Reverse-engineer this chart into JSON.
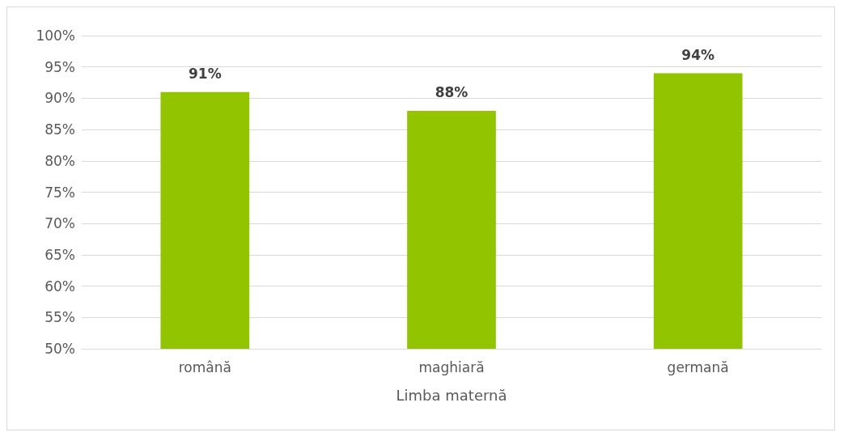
{
  "chart_data": {
    "type": "bar",
    "xlabel": "Limba maternă",
    "categories": [
      "română",
      "maghiară",
      "germană"
    ],
    "values": [
      91,
      88,
      94
    ],
    "value_labels": [
      "91%",
      "88%",
      "94%"
    ],
    "color": "#92c400",
    "ylim": [
      50,
      100
    ],
    "yticks": [
      {
        "value": 50,
        "label": "50%"
      },
      {
        "value": 55,
        "label": "55%"
      },
      {
        "value": 60,
        "label": "60%"
      },
      {
        "value": 65,
        "label": "65%"
      },
      {
        "value": 70,
        "label": "70%"
      },
      {
        "value": 75,
        "label": "75%"
      },
      {
        "value": 80,
        "label": "80%"
      },
      {
        "value": 85,
        "label": "85%"
      },
      {
        "value": 90,
        "label": "90%"
      },
      {
        "value": 95,
        "label": "95%"
      },
      {
        "value": 100,
        "label": "100%"
      }
    ],
    "grid": "y"
  }
}
